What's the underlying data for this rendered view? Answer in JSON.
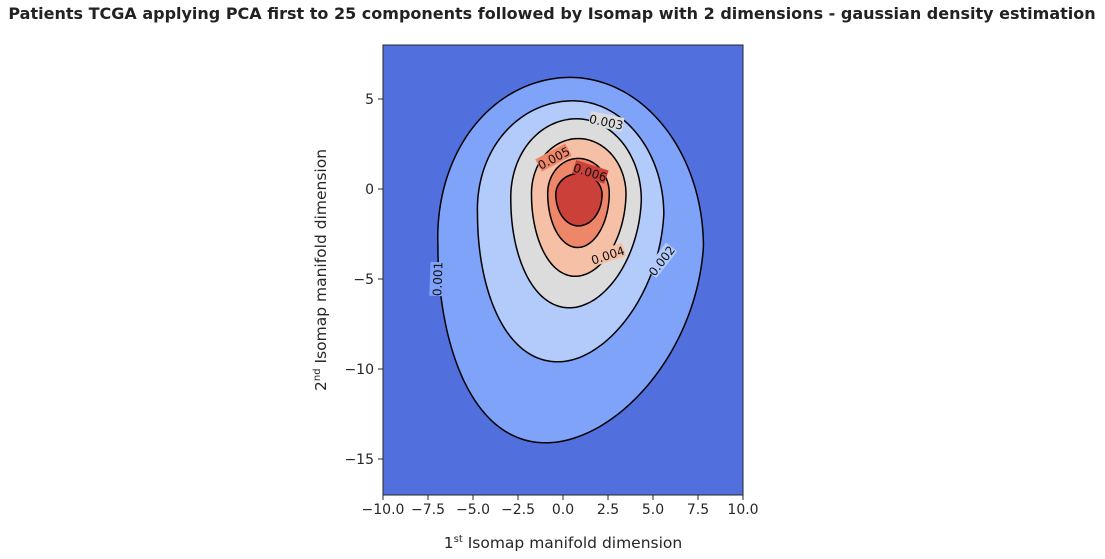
{
  "chart_data": {
    "type": "contour",
    "title": "Patients TCGA applying PCA first to 25 components followed by Isomap with 2 dimensions - gaussian density estimation",
    "xlabel": {
      "base": "1",
      "sup": "st",
      "rest": " Isomap manifold dimension"
    },
    "ylabel": {
      "base": "2",
      "sup": "nd",
      "rest": " Isomap manifold dimension"
    },
    "xlim": [
      -10,
      10
    ],
    "ylim": [
      -17,
      8
    ],
    "x_ticks": [
      -10,
      -7.5,
      -5,
      -2.5,
      0,
      2.5,
      5,
      7.5,
      10
    ],
    "x_tick_labels": [
      "−10.0",
      "−7.5",
      "−5.0",
      "−2.5",
      "0.0",
      "2.5",
      "5.0",
      "7.5",
      "10.0"
    ],
    "y_ticks": [
      5,
      0,
      -5,
      -10,
      -15
    ],
    "y_tick_labels": [
      "5",
      "0",
      "−5",
      "−10",
      "−15"
    ],
    "background_color": "#5170de",
    "levels": [
      {
        "level": 0.001,
        "label": "0.001",
        "fill": "#80a3fa",
        "label_pos": [
          -6.95,
          -5.0
        ],
        "label_angle": -88
      },
      {
        "level": 0.002,
        "label": "0.002",
        "fill": "#b2cbfb",
        "label_pos": [
          5.5,
          -4.0
        ],
        "label_angle": -52
      },
      {
        "level": 0.003,
        "label": "0.003",
        "fill": "#dcdcdc",
        "label_pos": [
          2.4,
          3.7
        ],
        "label_angle": 12
      },
      {
        "level": 0.004,
        "label": "0.004",
        "fill": "#f5c0a5",
        "label_pos": [
          2.5,
          -3.7
        ],
        "label_angle": -18
      },
      {
        "level": 0.005,
        "label": "0.005",
        "fill": "#ee8669",
        "label_pos": [
          -0.5,
          1.7
        ],
        "label_angle": -28
      },
      {
        "level": 0.006,
        "label": "0.006",
        "fill": "#cc403a",
        "label_pos": [
          1.5,
          0.9
        ],
        "label_angle": 18
      }
    ]
  }
}
